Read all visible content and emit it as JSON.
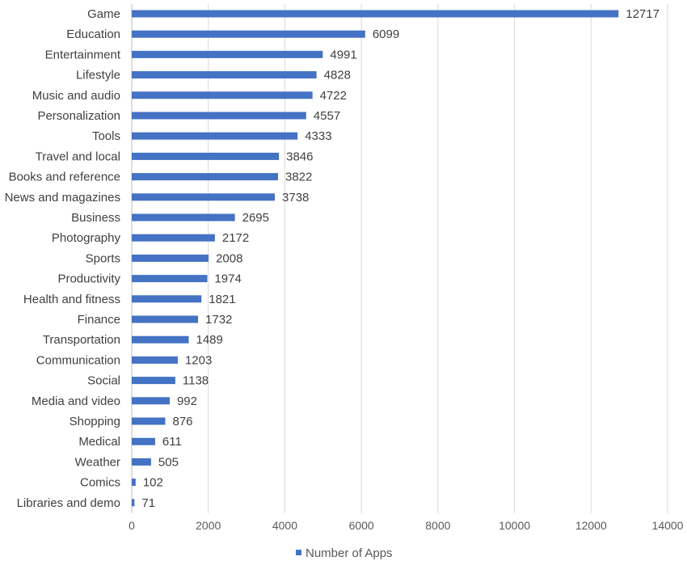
{
  "chart_data": {
    "type": "bar",
    "orientation": "horizontal",
    "categories": [
      "Game",
      "Education",
      "Entertainment",
      "Lifestyle",
      "Music and audio",
      "Personalization",
      "Tools",
      "Travel and local",
      "Books and reference",
      "News and magazines",
      "Business",
      "Photography",
      "Sports",
      "Productivity",
      "Health and fitness",
      "Finance",
      "Transportation",
      "Communication",
      "Social",
      "Media and video",
      "Shopping",
      "Medical",
      "Weather",
      "Comics",
      "Libraries and demo"
    ],
    "series": [
      {
        "name": "Number of Apps",
        "color": "#4472c4",
        "values": [
          12717,
          6099,
          4991,
          4828,
          4722,
          4557,
          4333,
          3846,
          3822,
          3738,
          2695,
          2172,
          2008,
          1974,
          1821,
          1732,
          1489,
          1203,
          1138,
          992,
          876,
          611,
          505,
          102,
          71
        ]
      }
    ],
    "xlim": [
      0,
      14000
    ],
    "xticks": [
      "0",
      "2000",
      "4000",
      "6000",
      "8000",
      "10000",
      "12000",
      "14000"
    ],
    "grid": "vertical",
    "legend_position": "bottom",
    "title": "",
    "xlabel": "",
    "ylabel": ""
  }
}
